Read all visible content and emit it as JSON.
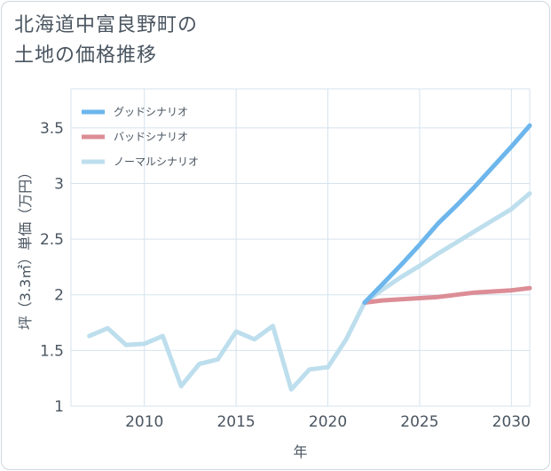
{
  "header": {
    "title_line1": "北海道中富良野町の",
    "title_line2": "土地の価格推移"
  },
  "chart_data": {
    "type": "line",
    "title": "北海道中富良野町の土地の価格推移",
    "xlabel": "年",
    "ylabel": "坪（3.3㎡）単価（万円）",
    "xlim": [
      2006,
      2031
    ],
    "ylim": [
      1,
      3.85
    ],
    "x_ticks": [
      2010,
      2015,
      2020,
      2025,
      2030
    ],
    "y_ticks": [
      1,
      1.5,
      2,
      2.5,
      3,
      3.5
    ],
    "x_tick_labels": [
      "2010",
      "2015",
      "2020",
      "2025",
      "2030"
    ],
    "y_tick_labels": [
      "1",
      "1.5",
      "2",
      "2.5",
      "3",
      "3.5"
    ],
    "grid": true,
    "legend_position": "top-left",
    "series": [
      {
        "name": "グッドシナリオ",
        "color": "#6cb6ec",
        "x": [
          2022,
          2023,
          2024,
          2025,
          2026,
          2027,
          2028,
          2029,
          2030,
          2031
        ],
        "values": [
          1.93,
          2.1,
          2.27,
          2.45,
          2.64,
          2.8,
          2.97,
          3.15,
          3.33,
          3.52
        ]
      },
      {
        "name": "バッドシナリオ",
        "color": "#dc8d96",
        "x": [
          2022,
          2023,
          2024,
          2025,
          2026,
          2027,
          2028,
          2029,
          2030,
          2031
        ],
        "values": [
          1.93,
          1.95,
          1.96,
          1.97,
          1.98,
          2.0,
          2.02,
          2.03,
          2.04,
          2.06
        ]
      },
      {
        "name": "ノーマルシナリオ",
        "color": "#bddeed",
        "x": [
          2007,
          2008,
          2009,
          2010,
          2011,
          2012,
          2013,
          2014,
          2015,
          2016,
          2017,
          2018,
          2019,
          2020,
          2021,
          2022,
          2023,
          2024,
          2025,
          2026,
          2027,
          2028,
          2029,
          2030,
          2031
        ],
        "values": [
          1.63,
          1.7,
          1.55,
          1.56,
          1.63,
          1.18,
          1.38,
          1.42,
          1.67,
          1.6,
          1.72,
          1.15,
          1.33,
          1.35,
          1.6,
          1.93,
          2.05,
          2.16,
          2.26,
          2.37,
          2.47,
          2.57,
          2.67,
          2.77,
          2.91
        ]
      }
    ]
  }
}
